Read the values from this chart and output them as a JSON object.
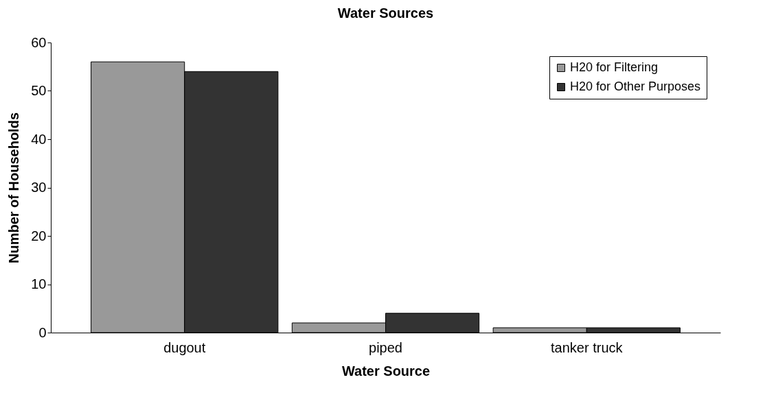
{
  "chart_data": {
    "type": "bar",
    "title": "Water Sources",
    "xlabel": "Water Source",
    "ylabel": "Number of Households",
    "categories": [
      "dugout",
      "piped",
      "tanker truck"
    ],
    "series": [
      {
        "name": "H20 for Filtering",
        "color": "#999999",
        "values": [
          56,
          2,
          1
        ]
      },
      {
        "name": "H20 for Other Purposes",
        "color": "#333333",
        "values": [
          54,
          4,
          1
        ]
      }
    ],
    "ylim": [
      0,
      60
    ],
    "yticks": [
      0,
      10,
      20,
      30,
      40,
      50,
      60
    ],
    "grid": false,
    "legend": "top right"
  }
}
